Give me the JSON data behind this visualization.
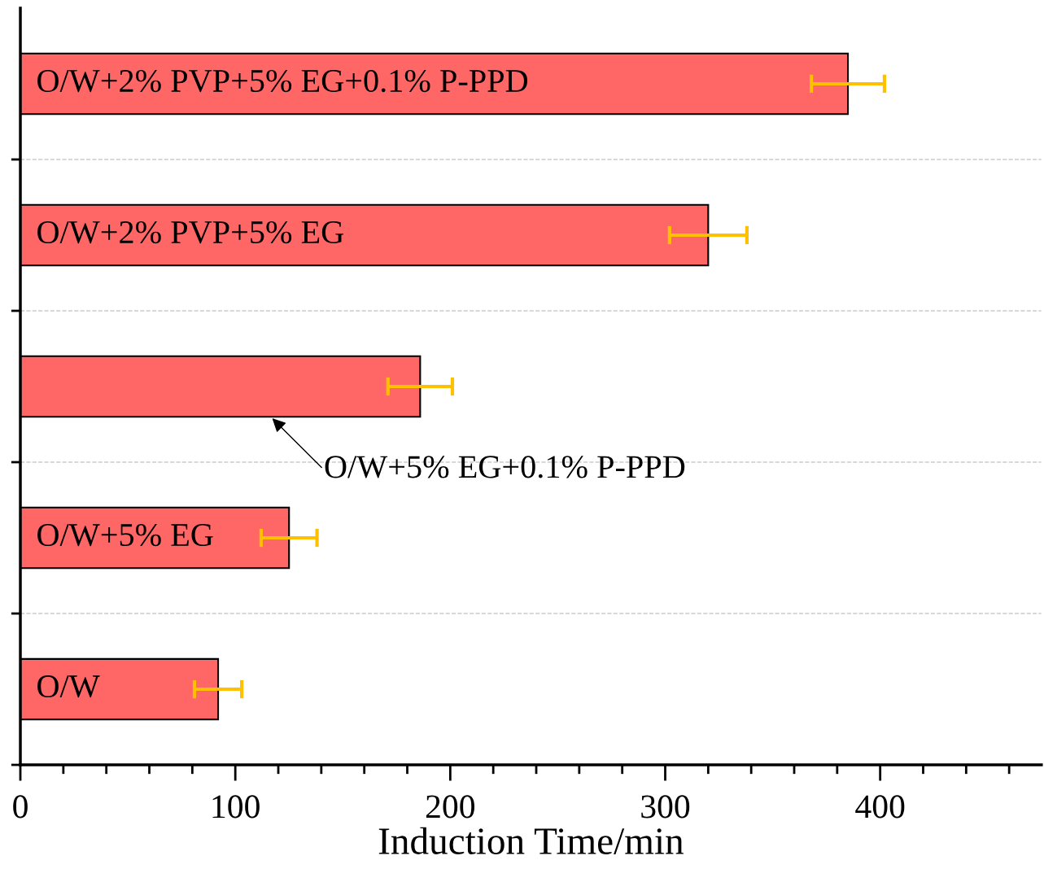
{
  "chart_data": {
    "type": "bar",
    "orientation": "horizontal",
    "xlabel": "Induction Time/min",
    "categories": [
      "O/W+2% PVP+5% EG+0.1% P-PPD",
      "O/W+2% PVP+5% EG",
      "O/W+5% EG+0.1% P-PPD",
      "O/W+5% EG",
      "O/W"
    ],
    "values": [
      385,
      320,
      186,
      125,
      92
    ],
    "errors": [
      17,
      18,
      15,
      13,
      11
    ],
    "color": "#ff6666",
    "xlim": [
      0,
      475
    ],
    "xticks": [
      0,
      100,
      200,
      300,
      400
    ],
    "grid": "y",
    "tick_labels": "x"
  }
}
